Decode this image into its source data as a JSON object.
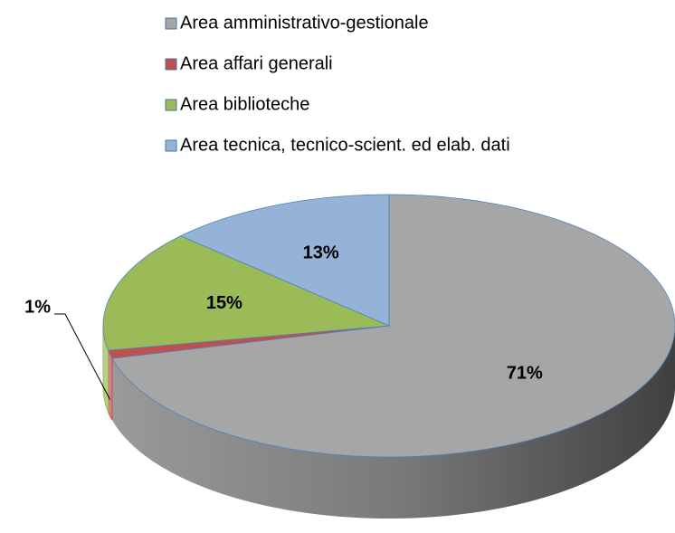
{
  "chart_data": {
    "type": "pie",
    "categories": [
      "Area amministrativo-gestionale",
      "Area affari generali",
      "Area biblioteche",
      "Area tecnica, tecnico-scient. ed elab. dati"
    ],
    "values": [
      71,
      1,
      15,
      13
    ],
    "value_labels": [
      "71%",
      "1%",
      "15%",
      "13%"
    ],
    "colors": [
      "#a6a6a6",
      "#c0504d",
      "#9bbb59",
      "#95b3d7"
    ],
    "legend": "top"
  }
}
